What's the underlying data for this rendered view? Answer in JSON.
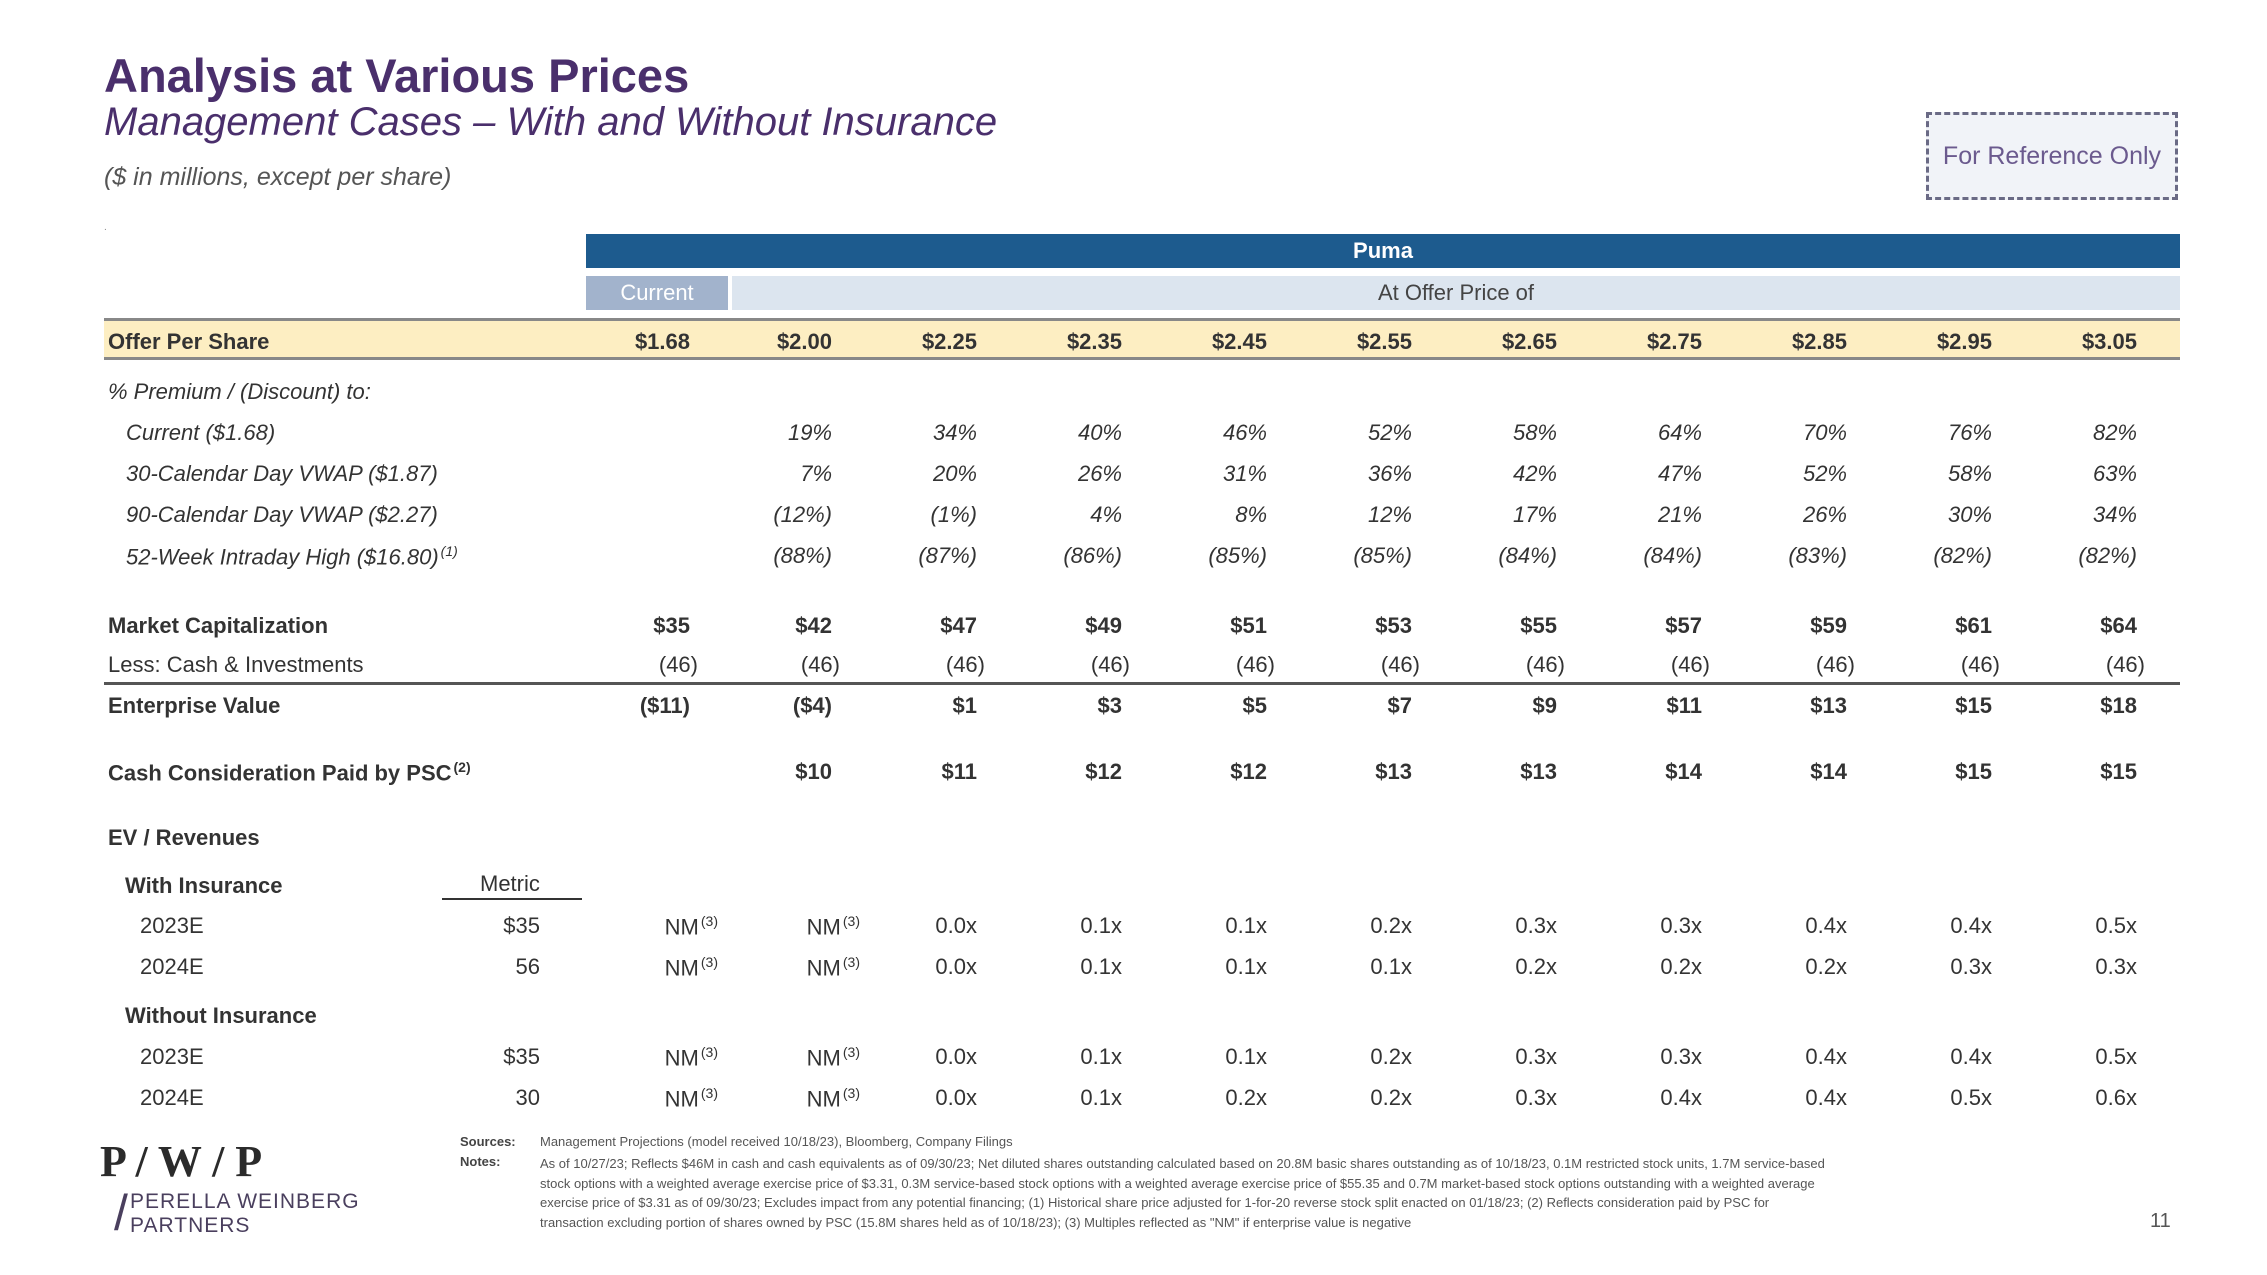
{
  "header": {
    "title": "Analysis at Various Prices",
    "subtitle": "Management Cases – With and Without Insurance",
    "units": "($ in millions, except per share)",
    "tiny_mark": ".",
    "reference_badge": "For Reference Only"
  },
  "table": {
    "group_header": "Puma",
    "current_header": "Current",
    "offer_header": "At Offer Price of",
    "offer_row": {
      "label": "Offer Per Share",
      "values": [
        "$1.68",
        "$2.00",
        "$2.25",
        "$2.35",
        "$2.45",
        "$2.55",
        "$2.65",
        "$2.75",
        "$2.85",
        "$2.95",
        "$3.05"
      ]
    },
    "premium_section": {
      "label": "% Premium / (Discount) to:",
      "rows": [
        {
          "label": "Current ($1.68)",
          "sup": "",
          "values": [
            "19%",
            "34%",
            "40%",
            "46%",
            "52%",
            "58%",
            "64%",
            "70%",
            "76%",
            "82%"
          ]
        },
        {
          "label": "30-Calendar Day VWAP ($1.87)",
          "sup": "",
          "values": [
            "7%",
            "20%",
            "26%",
            "31%",
            "36%",
            "42%",
            "47%",
            "52%",
            "58%",
            "63%"
          ]
        },
        {
          "label": "90-Calendar Day VWAP ($2.27)",
          "sup": "",
          "values": [
            "(12%)",
            "(1%)",
            "4%",
            "8%",
            "12%",
            "17%",
            "21%",
            "26%",
            "30%",
            "34%"
          ]
        },
        {
          "label": "52-Week Intraday High ($16.80)",
          "sup": "(1)",
          "values": [
            "(88%)",
            "(87%)",
            "(86%)",
            "(85%)",
            "(85%)",
            "(84%)",
            "(84%)",
            "(83%)",
            "(82%)",
            "(82%)"
          ]
        }
      ]
    },
    "market_cap": {
      "label": "Market Capitalization",
      "values": [
        "$35",
        "$42",
        "$47",
        "$49",
        "$51",
        "$53",
        "$55",
        "$57",
        "$59",
        "$61",
        "$64"
      ]
    },
    "less_cash": {
      "label": "Less: Cash & Investments",
      "values": [
        "(46)",
        "(46)",
        "(46)",
        "(46)",
        "(46)",
        "(46)",
        "(46)",
        "(46)",
        "(46)",
        "(46)",
        "(46)"
      ]
    },
    "enterprise_value": {
      "label": "Enterprise Value",
      "values": [
        "($11)",
        "($4)",
        "$1",
        "$3",
        "$5",
        "$7",
        "$9",
        "$11",
        "$13",
        "$15",
        "$18"
      ]
    },
    "cash_consideration": {
      "label": "Cash Consideration Paid by PSC",
      "sup": "(2)",
      "values": [
        "$10",
        "$11",
        "$12",
        "$12",
        "$13",
        "$13",
        "$14",
        "$14",
        "$15",
        "$15"
      ]
    },
    "ev_revenues": {
      "label": "EV / Revenues",
      "metric_header": "Metric",
      "nm_label": "NM",
      "nm_sup": "(3)",
      "with_insurance": {
        "label": "With Insurance",
        "rows": [
          {
            "year": "2023E",
            "metric": "$35",
            "values": [
              "NM",
              "NM",
              "0.0x",
              "0.1x",
              "0.1x",
              "0.2x",
              "0.3x",
              "0.3x",
              "0.4x",
              "0.4x",
              "0.5x"
            ]
          },
          {
            "year": "2024E",
            "metric": "56",
            "values": [
              "NM",
              "NM",
              "0.0x",
              "0.1x",
              "0.1x",
              "0.1x",
              "0.2x",
              "0.2x",
              "0.2x",
              "0.3x",
              "0.3x"
            ]
          }
        ]
      },
      "without_insurance": {
        "label": "Without Insurance",
        "rows": [
          {
            "year": "2023E",
            "metric": "$35",
            "values": [
              "NM",
              "NM",
              "0.0x",
              "0.1x",
              "0.1x",
              "0.2x",
              "0.3x",
              "0.3x",
              "0.4x",
              "0.4x",
              "0.5x"
            ]
          },
          {
            "year": "2024E",
            "metric": "30",
            "values": [
              "NM",
              "NM",
              "0.0x",
              "0.1x",
              "0.2x",
              "0.2x",
              "0.3x",
              "0.4x",
              "0.4x",
              "0.5x",
              "0.6x"
            ]
          }
        ]
      }
    }
  },
  "footer": {
    "logo_mark": "P / W / P",
    "logo_slash": "/",
    "logo_name": "PERELLA WEINBERG\nPARTNERS",
    "sources_label": "Sources:",
    "sources_text": "Management Projections (model received 10/18/23), Bloomberg, Company Filings",
    "notes_label": "Notes:",
    "notes_text": "As of 10/27/23; Reflects $46M in cash and cash equivalents as of 09/30/23; Net diluted shares outstanding calculated based on 20.8M basic shares outstanding as of 10/18/23, 0.1M restricted stock units, 1.7M service-based stock options with a weighted average exercise price of $3.31, 0.3M service-based stock options with a weighted average exercise price of $55.35 and 0.7M market-based stock options outstanding with a weighted average exercise price of $3.31 as of 09/30/23; Excludes impact from any potential financing; (1) Historical share price adjusted for 1-for-20 reverse stock split enacted on 01/18/23; (2) Reflects consideration paid by PSC for transaction excluding portion of shares owned by PSC (15.8M shares held as of 10/18/23); (3) Multiples reflected as \"NM\" if enterprise value is negative",
    "page_number": "11"
  },
  "colors": {
    "title": "#4a2f6c",
    "puma_bar": "#1d5b8e",
    "current_bar": "#a2b3cc",
    "offer_bar": "#dce5ef",
    "offer_row": "#fdeec2"
  }
}
